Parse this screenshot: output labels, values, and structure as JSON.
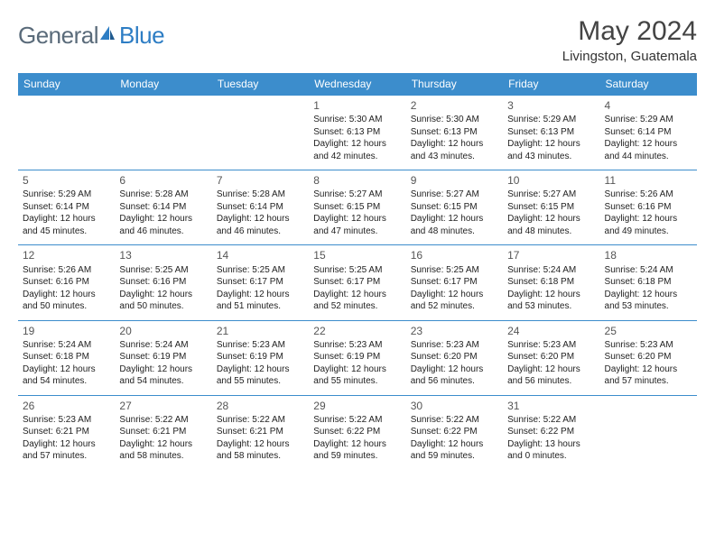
{
  "brand": {
    "part1": "General",
    "part2": "Blue"
  },
  "title": "May 2024",
  "location": "Livingston, Guatemala",
  "colors": {
    "header_bg": "#3c8dcc",
    "header_text": "#ffffff",
    "border": "#3c8dcc",
    "brand_gray": "#5a6b7a",
    "brand_blue": "#2d7dc4"
  },
  "weekdays": [
    "Sunday",
    "Monday",
    "Tuesday",
    "Wednesday",
    "Thursday",
    "Friday",
    "Saturday"
  ],
  "weeks": [
    [
      null,
      null,
      null,
      {
        "n": "1",
        "sr": "5:30 AM",
        "ss": "6:13 PM",
        "dl": "12 hours and 42 minutes."
      },
      {
        "n": "2",
        "sr": "5:30 AM",
        "ss": "6:13 PM",
        "dl": "12 hours and 43 minutes."
      },
      {
        "n": "3",
        "sr": "5:29 AM",
        "ss": "6:13 PM",
        "dl": "12 hours and 43 minutes."
      },
      {
        "n": "4",
        "sr": "5:29 AM",
        "ss": "6:14 PM",
        "dl": "12 hours and 44 minutes."
      }
    ],
    [
      {
        "n": "5",
        "sr": "5:29 AM",
        "ss": "6:14 PM",
        "dl": "12 hours and 45 minutes."
      },
      {
        "n": "6",
        "sr": "5:28 AM",
        "ss": "6:14 PM",
        "dl": "12 hours and 46 minutes."
      },
      {
        "n": "7",
        "sr": "5:28 AM",
        "ss": "6:14 PM",
        "dl": "12 hours and 46 minutes."
      },
      {
        "n": "8",
        "sr": "5:27 AM",
        "ss": "6:15 PM",
        "dl": "12 hours and 47 minutes."
      },
      {
        "n": "9",
        "sr": "5:27 AM",
        "ss": "6:15 PM",
        "dl": "12 hours and 48 minutes."
      },
      {
        "n": "10",
        "sr": "5:27 AM",
        "ss": "6:15 PM",
        "dl": "12 hours and 48 minutes."
      },
      {
        "n": "11",
        "sr": "5:26 AM",
        "ss": "6:16 PM",
        "dl": "12 hours and 49 minutes."
      }
    ],
    [
      {
        "n": "12",
        "sr": "5:26 AM",
        "ss": "6:16 PM",
        "dl": "12 hours and 50 minutes."
      },
      {
        "n": "13",
        "sr": "5:25 AM",
        "ss": "6:16 PM",
        "dl": "12 hours and 50 minutes."
      },
      {
        "n": "14",
        "sr": "5:25 AM",
        "ss": "6:17 PM",
        "dl": "12 hours and 51 minutes."
      },
      {
        "n": "15",
        "sr": "5:25 AM",
        "ss": "6:17 PM",
        "dl": "12 hours and 52 minutes."
      },
      {
        "n": "16",
        "sr": "5:25 AM",
        "ss": "6:17 PM",
        "dl": "12 hours and 52 minutes."
      },
      {
        "n": "17",
        "sr": "5:24 AM",
        "ss": "6:18 PM",
        "dl": "12 hours and 53 minutes."
      },
      {
        "n": "18",
        "sr": "5:24 AM",
        "ss": "6:18 PM",
        "dl": "12 hours and 53 minutes."
      }
    ],
    [
      {
        "n": "19",
        "sr": "5:24 AM",
        "ss": "6:18 PM",
        "dl": "12 hours and 54 minutes."
      },
      {
        "n": "20",
        "sr": "5:24 AM",
        "ss": "6:19 PM",
        "dl": "12 hours and 54 minutes."
      },
      {
        "n": "21",
        "sr": "5:23 AM",
        "ss": "6:19 PM",
        "dl": "12 hours and 55 minutes."
      },
      {
        "n": "22",
        "sr": "5:23 AM",
        "ss": "6:19 PM",
        "dl": "12 hours and 55 minutes."
      },
      {
        "n": "23",
        "sr": "5:23 AM",
        "ss": "6:20 PM",
        "dl": "12 hours and 56 minutes."
      },
      {
        "n": "24",
        "sr": "5:23 AM",
        "ss": "6:20 PM",
        "dl": "12 hours and 56 minutes."
      },
      {
        "n": "25",
        "sr": "5:23 AM",
        "ss": "6:20 PM",
        "dl": "12 hours and 57 minutes."
      }
    ],
    [
      {
        "n": "26",
        "sr": "5:23 AM",
        "ss": "6:21 PM",
        "dl": "12 hours and 57 minutes."
      },
      {
        "n": "27",
        "sr": "5:22 AM",
        "ss": "6:21 PM",
        "dl": "12 hours and 58 minutes."
      },
      {
        "n": "28",
        "sr": "5:22 AM",
        "ss": "6:21 PM",
        "dl": "12 hours and 58 minutes."
      },
      {
        "n": "29",
        "sr": "5:22 AM",
        "ss": "6:22 PM",
        "dl": "12 hours and 59 minutes."
      },
      {
        "n": "30",
        "sr": "5:22 AM",
        "ss": "6:22 PM",
        "dl": "12 hours and 59 minutes."
      },
      {
        "n": "31",
        "sr": "5:22 AM",
        "ss": "6:22 PM",
        "dl": "13 hours and 0 minutes."
      },
      null
    ]
  ],
  "labels": {
    "sunrise": "Sunrise:",
    "sunset": "Sunset:",
    "daylight": "Daylight:"
  }
}
